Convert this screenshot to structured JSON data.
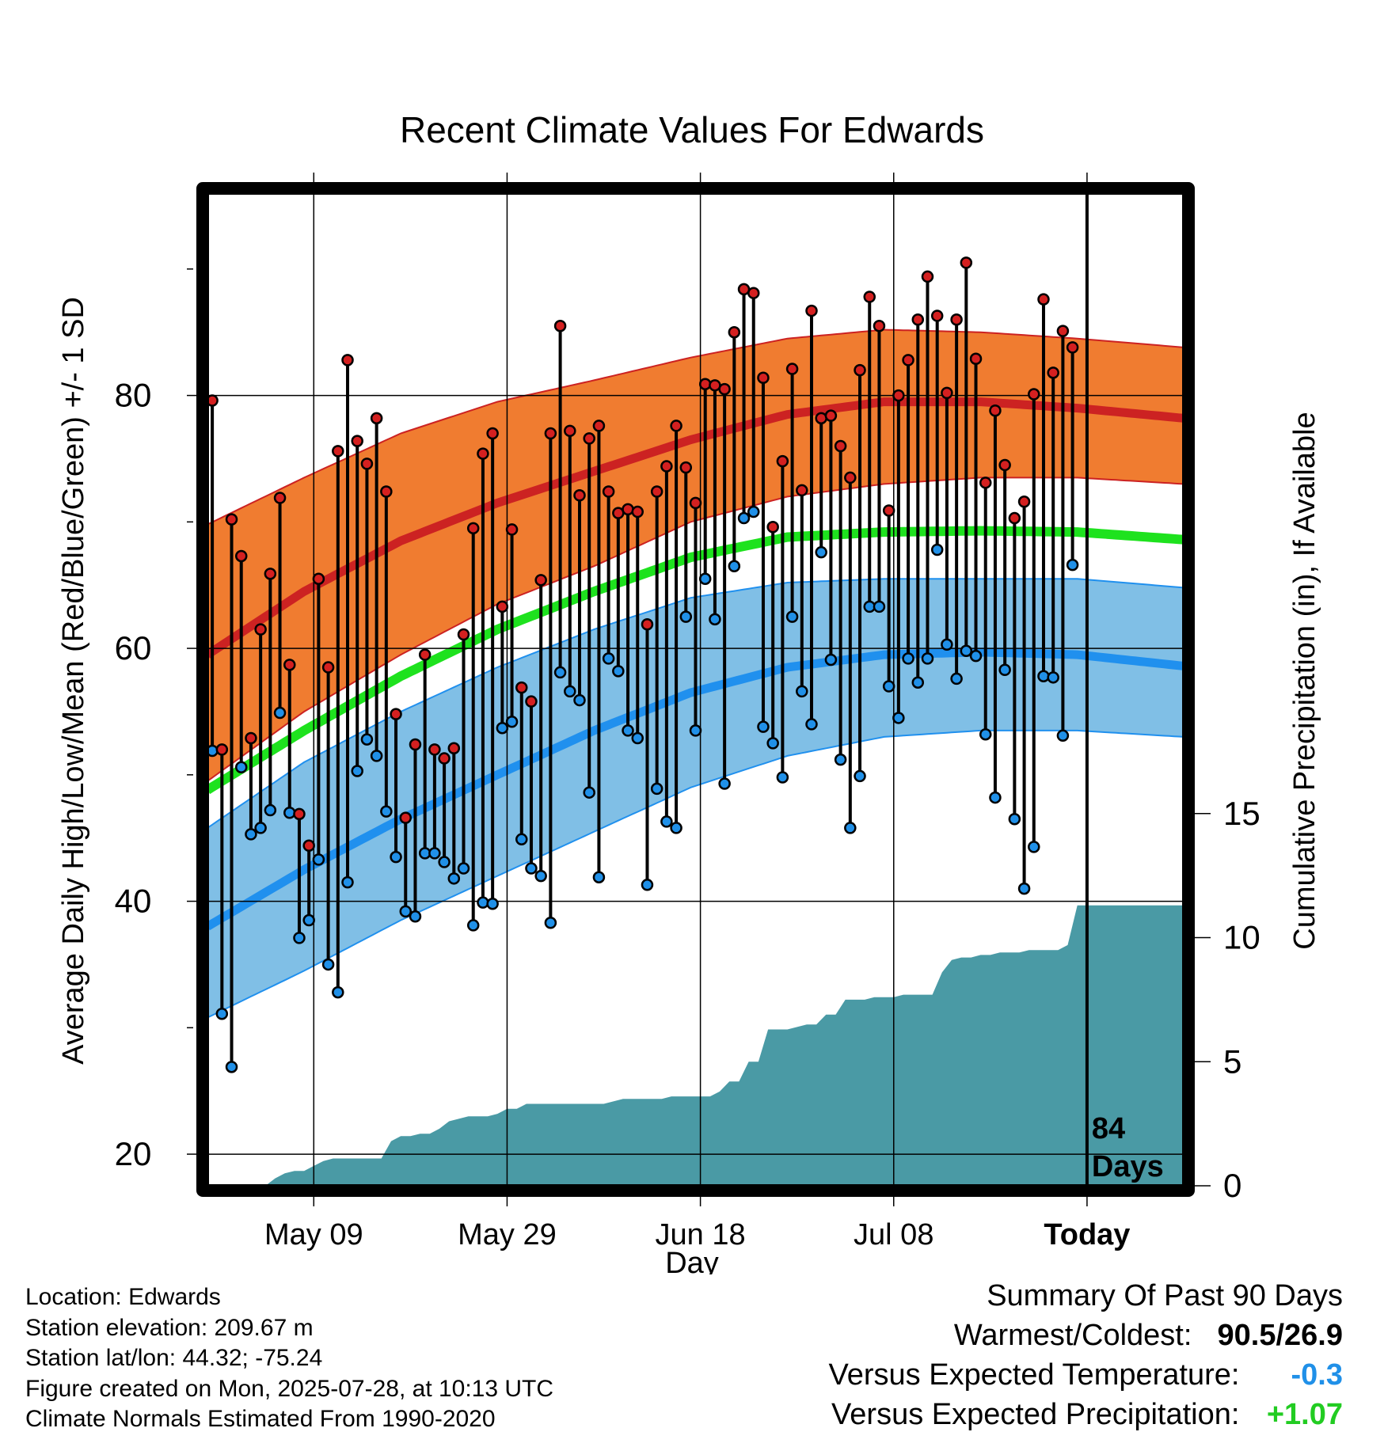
{
  "chart_data": {
    "type": "line",
    "title": "Recent Climate Values For Edwards",
    "xlabel": "Day",
    "ylabel_left": "Average Daily High/Low/Mean (Red/Blue/Green) +/- 1 SD",
    "ylabel_right": "Cumulative Precipitation (in), If Available",
    "x_ticks": [
      "May 09",
      "May 29",
      "Jun 18",
      "Jul 08",
      "Today"
    ],
    "x_tick_days": [
      11,
      31,
      51,
      71,
      91
    ],
    "y_ticks_left": [
      20,
      40,
      60,
      80
    ],
    "y_ticks_right": [
      0,
      5,
      10,
      15
    ],
    "ylim_left": [
      17.5,
      96
    ],
    "ylim_right": [
      0,
      40
    ],
    "xlim_days": [
      0,
      101
    ],
    "today_day": 91,
    "today_label_line1": "84",
    "today_label_line2": "Days",
    "grid": true,
    "normals": {
      "days": [
        0,
        10,
        20,
        30,
        40,
        50,
        60,
        70,
        80,
        90,
        101
      ],
      "high_mean": [
        59.5,
        64.5,
        68.5,
        71.5,
        74,
        76.5,
        78.5,
        79.5,
        79.5,
        79,
        78.2
      ],
      "high_upper": [
        69.8,
        73.5,
        77,
        79.5,
        81.2,
        83,
        84.5,
        85.2,
        85,
        84.5,
        83.8
      ],
      "high_lower": [
        49.5,
        55,
        59.5,
        63.5,
        66.5,
        70,
        72,
        73,
        73.5,
        73.5,
        73
      ],
      "mean": [
        48.8,
        53.5,
        57.8,
        61.5,
        64.5,
        67.2,
        68.8,
        69.2,
        69.3,
        69.2,
        68.6
      ],
      "low_mean": [
        38,
        42.5,
        46.5,
        50,
        53.5,
        56.5,
        58.5,
        59.5,
        59.7,
        59.5,
        58.6
      ],
      "low_upper": [
        45.8,
        51,
        55,
        58.5,
        61.5,
        64,
        65.2,
        65.5,
        65.5,
        65.5,
        64.8
      ],
      "low_lower": [
        30.8,
        34.5,
        38.5,
        42,
        45.5,
        49,
        51.5,
        53,
        53.5,
        53.5,
        53
      ]
    },
    "series": [
      {
        "name": "Daily High",
        "color": "#d42020",
        "values": [
          79.6,
          52.0,
          70.2,
          67.3,
          52.9,
          61.5,
          65.9,
          71.9,
          58.7,
          46.9,
          44.4,
          65.5,
          58.5,
          75.6,
          82.8,
          76.4,
          74.6,
          78.2,
          72.4,
          54.8,
          46.6,
          52.4,
          59.5,
          52.0,
          51.3,
          52.1,
          61.1,
          69.5,
          75.4,
          77.0,
          63.3,
          69.4,
          56.9,
          55.8,
          65.4,
          77.0,
          85.5,
          77.2,
          72.1,
          76.6,
          77.6,
          72.4,
          70.7,
          71.0,
          70.8,
          61.9,
          72.4,
          74.4,
          77.6,
          74.3,
          71.5,
          80.9,
          80.8,
          80.5,
          85.0,
          88.4,
          88.1,
          81.4,
          69.6,
          74.8,
          82.1,
          72.5,
          86.7,
          78.2,
          78.4,
          76.0,
          73.5,
          82.0,
          87.8,
          85.5,
          70.9,
          80.0,
          82.8,
          86.0,
          89.4,
          86.3,
          80.2,
          86.0,
          90.5,
          82.9,
          73.1,
          78.8,
          74.5,
          70.3,
          71.6,
          80.1,
          87.6,
          81.8,
          85.1,
          83.8
        ]
      },
      {
        "name": "Daily Low",
        "color": "#2090e8",
        "values": [
          51.9,
          31.1,
          26.9,
          50.6,
          45.3,
          45.8,
          47.2,
          54.9,
          47.0,
          37.1,
          38.5,
          43.3,
          35.0,
          32.8,
          41.5,
          50.3,
          52.8,
          51.5,
          47.1,
          43.5,
          39.2,
          38.8,
          43.8,
          43.8,
          43.1,
          41.8,
          42.6,
          38.1,
          39.9,
          39.8,
          53.7,
          54.2,
          44.9,
          42.6,
          42.0,
          38.3,
          58.1,
          56.6,
          55.9,
          48.6,
          41.9,
          59.2,
          58.2,
          53.5,
          52.9,
          41.3,
          48.9,
          46.3,
          45.8,
          62.5,
          53.5,
          65.5,
          62.3,
          49.3,
          66.5,
          70.3,
          70.8,
          53.8,
          52.5,
          49.8,
          62.5,
          56.6,
          54.0,
          67.6,
          59.1,
          51.2,
          45.8,
          49.9,
          63.3,
          63.3,
          57.0,
          54.5,
          59.2,
          57.3,
          59.2,
          67.8,
          60.3,
          57.6,
          59.8,
          59.4,
          53.2,
          48.2,
          58.3,
          46.5,
          41.0,
          44.3,
          57.8,
          57.7,
          53.1,
          66.6
        ]
      },
      {
        "name": "Cumulative Precipitation",
        "color": "#4a9aa5",
        "days": [
          6,
          7,
          8,
          9,
          10,
          11,
          12,
          13,
          14,
          15,
          16,
          17,
          18,
          19,
          20,
          21,
          22,
          23,
          24,
          25,
          26,
          27,
          28,
          29,
          30,
          31,
          32,
          33,
          34,
          35,
          36,
          37,
          38,
          39,
          40,
          41,
          42,
          43,
          44,
          45,
          46,
          47,
          48,
          49,
          50,
          51,
          52,
          53,
          54,
          55,
          56,
          57,
          58,
          59,
          60,
          61,
          62,
          63,
          64,
          65,
          66,
          67,
          68,
          69,
          70,
          71,
          72,
          73,
          74,
          75,
          76,
          77,
          78,
          79,
          80,
          81,
          82,
          83,
          84,
          85,
          86,
          87,
          88,
          89,
          90,
          91,
          92,
          93,
          94,
          95,
          96,
          97,
          98,
          99,
          100,
          101
        ],
        "values": [
          0.0,
          0.3,
          0.5,
          0.6,
          0.6,
          0.8,
          1.0,
          1.1,
          1.1,
          1.1,
          1.1,
          1.1,
          1.1,
          1.8,
          2.0,
          2.0,
          2.1,
          2.1,
          2.3,
          2.6,
          2.7,
          2.8,
          2.8,
          2.8,
          2.9,
          3.1,
          3.1,
          3.3,
          3.3,
          3.3,
          3.3,
          3.3,
          3.3,
          3.3,
          3.3,
          3.3,
          3.4,
          3.5,
          3.5,
          3.5,
          3.5,
          3.5,
          3.6,
          3.6,
          3.6,
          3.6,
          3.6,
          3.8,
          4.2,
          4.2,
          5.0,
          5.0,
          6.3,
          6.3,
          6.3,
          6.4,
          6.5,
          6.5,
          6.9,
          6.9,
          7.5,
          7.5,
          7.5,
          7.6,
          7.6,
          7.6,
          7.7,
          7.7,
          7.7,
          7.7,
          8.6,
          9.1,
          9.2,
          9.2,
          9.3,
          9.3,
          9.4,
          9.4,
          9.4,
          9.5,
          9.5,
          9.5,
          9.5,
          9.7,
          11.3,
          11.3,
          11.3,
          11.3,
          11.3,
          11.3,
          11.3,
          11.3,
          11.3,
          11.3,
          11.3,
          11.3
        ]
      }
    ]
  },
  "meta": {
    "location": "Location: Edwards",
    "elevation": "Station elevation: 209.67 m",
    "latlon": "Station lat/lon: 44.32; -75.24",
    "created": "Figure created on Mon, 2025-07-28, at 10:13 UTC",
    "normals": "Climate Normals Estimated From 1990-2020"
  },
  "summary": {
    "title": "Summary Of Past 90 Days",
    "warmest_coldest_label": "Warmest/Coldest:",
    "warmest_coldest_value": "90.5/26.9",
    "temp_label": "Versus Expected Temperature:",
    "temp_value": "-0.3",
    "temp_color": "#2090e8",
    "precip_label": "Versus Expected Precipitation:",
    "precip_value": "+1.07",
    "precip_color": "#22cc22"
  },
  "colors": {
    "high_band": "#f07c30",
    "high_line": "#cc2222",
    "mean_line": "#1ee21e",
    "low_band": "#80bfe6",
    "low_line": "#2090ee",
    "precip_fill": "#4a9aa5"
  }
}
